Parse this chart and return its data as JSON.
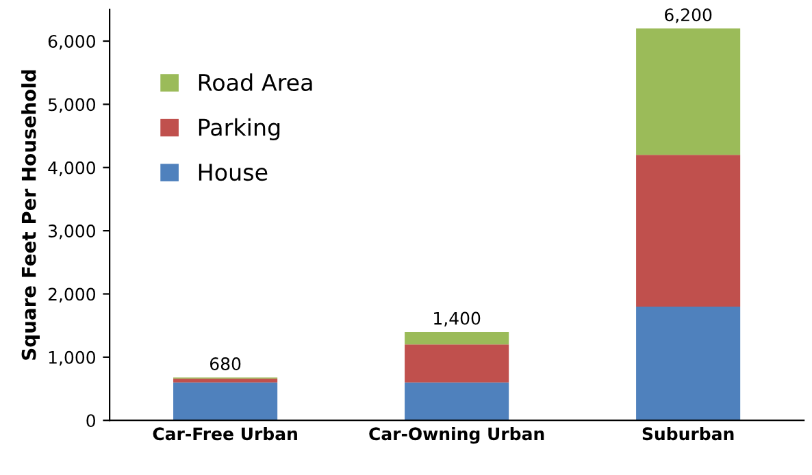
{
  "chart_data": {
    "type": "bar",
    "stacked": true,
    "ylabel": "Square Feet Per Household",
    "categories": [
      "Car-Free Urban",
      "Car-Owning Urban",
      "Suburban"
    ],
    "series": [
      {
        "name": "House",
        "color": "#4f81bd",
        "values": [
          600,
          600,
          1800
        ]
      },
      {
        "name": "Parking",
        "color": "#c0504d",
        "values": [
          60,
          600,
          2400
        ]
      },
      {
        "name": "Road Area",
        "color": "#9bbb59",
        "values": [
          20,
          200,
          2000
        ]
      }
    ],
    "totals": [
      "680",
      "1,400",
      "6,200"
    ],
    "ylim": [
      0,
      6500
    ],
    "yticks": [
      0,
      {
        "value": 1000,
        "label": "1,000"
      },
      {
        "value": 2000,
        "label": "2,000"
      },
      {
        "value": 3000,
        "label": "3,000"
      },
      {
        "value": 4000,
        "label": "4,000"
      },
      {
        "value": 5000,
        "label": "5,000"
      },
      {
        "value": 6000,
        "label": "6,000"
      }
    ],
    "grid": false,
    "legend": "top left"
  }
}
